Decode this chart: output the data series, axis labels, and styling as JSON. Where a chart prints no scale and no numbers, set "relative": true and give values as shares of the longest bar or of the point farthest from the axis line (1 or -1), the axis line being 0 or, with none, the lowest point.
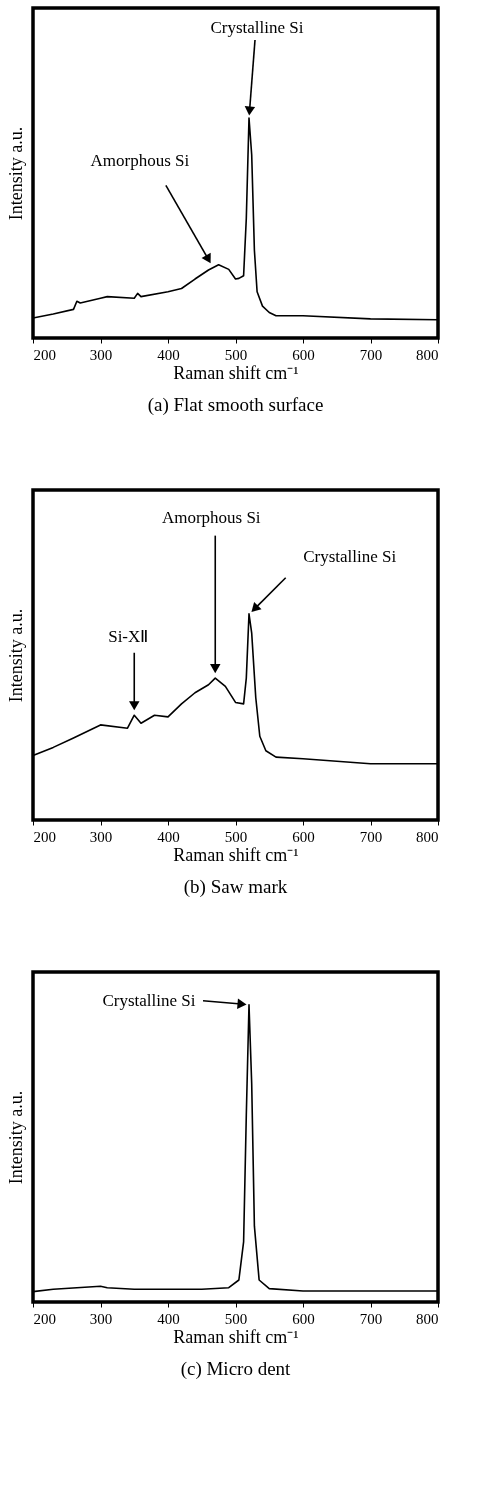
{
  "chart_data": [
    {
      "type": "line",
      "relative": true,
      "title": "(a) Flat smooth surface",
      "xlabel": "Raman shift cm⁻¹",
      "ylabel": "Intensity a.u.",
      "xlim": [
        200,
        800
      ],
      "xticks": [
        200,
        300,
        400,
        500,
        600,
        700,
        800
      ],
      "tick_labels": "x",
      "x": [
        200,
        230,
        260,
        265,
        270,
        300,
        310,
        350,
        355,
        360,
        400,
        420,
        440,
        460,
        475,
        490,
        500,
        505,
        512,
        516,
        520,
        524,
        528,
        532,
        540,
        550,
        560,
        600,
        700,
        800
      ],
      "series": [
        {
          "color": "#000000",
          "values": [
            0.091,
            0.109,
            0.13,
            0.167,
            0.159,
            0.181,
            0.188,
            0.181,
            0.203,
            0.188,
            0.21,
            0.225,
            0.268,
            0.309,
            0.333,
            0.312,
            0.268,
            0.271,
            0.283,
            0.543,
            1,
            0.833,
            0.399,
            0.21,
            0.145,
            0.116,
            0.101,
            0.101,
            0.087,
            0.083
          ]
        }
      ],
      "annotations": [
        {
          "text": "Crystalline Si",
          "x": 520,
          "y": 1
        },
        {
          "text": "Amorphous Si",
          "x": 465,
          "y": 0.33
        }
      ]
    },
    {
      "type": "line",
      "relative": true,
      "title": "(b) Saw mark",
      "xlabel": "Raman shift cm⁻¹",
      "ylabel": "Intensity a.u.",
      "xlim": [
        200,
        800
      ],
      "xticks": [
        200,
        300,
        400,
        500,
        600,
        700,
        800
      ],
      "tick_labels": "x",
      "x": [
        200,
        230,
        260,
        300,
        340,
        350,
        360,
        380,
        400,
        420,
        440,
        460,
        470,
        485,
        500,
        512,
        516,
        520,
        524,
        530,
        536,
        545,
        560,
        600,
        700,
        800
      ],
      "series": [
        {
          "color": "#000000",
          "values": [
            0.313,
            0.352,
            0.398,
            0.461,
            0.445,
            0.508,
            0.469,
            0.508,
            0.5,
            0.563,
            0.617,
            0.656,
            0.688,
            0.648,
            0.57,
            0.563,
            0.688,
            1,
            0.906,
            0.594,
            0.406,
            0.336,
            0.305,
            0.297,
            0.273,
            0.273
          ]
        }
      ],
      "annotations": [
        {
          "text": "Si-XⅡ",
          "x": 350,
          "y": 0.52
        },
        {
          "text": "Amorphous Si",
          "x": 470,
          "y": 0.7
        },
        {
          "text": "Crystalline Si",
          "x": 521,
          "y": 1
        }
      ]
    },
    {
      "type": "line",
      "relative": true,
      "title": "(c) Micro dent",
      "xlabel": "Raman shift cm⁻¹",
      "ylabel": "Intensity a.u.",
      "xlim": [
        200,
        800
      ],
      "xticks": [
        200,
        300,
        400,
        500,
        600,
        700,
        800
      ],
      "tick_labels": "x",
      "x": [
        200,
        230,
        300,
        310,
        350,
        450,
        490,
        505,
        512,
        516,
        520,
        524,
        528,
        535,
        550,
        600,
        700,
        800
      ],
      "series": [
        {
          "color": "#000000",
          "values": [
            0.035,
            0.043,
            0.053,
            0.048,
            0.043,
            0.043,
            0.048,
            0.074,
            0.202,
            0.628,
            1,
            0.734,
            0.255,
            0.074,
            0.045,
            0.037,
            0.037,
            0.037
          ]
        }
      ],
      "annotations": [
        "Crystalline Si"
      ]
    }
  ]
}
